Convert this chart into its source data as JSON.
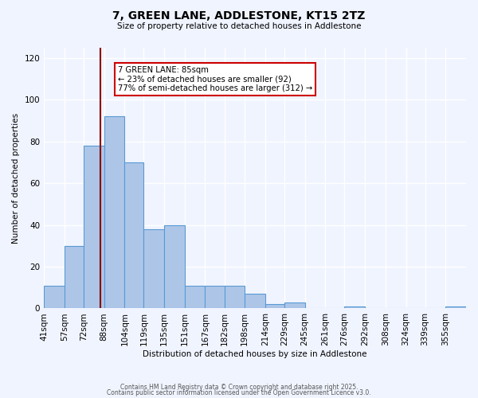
{
  "title": "7, GREEN LANE, ADDLESTONE, KT15 2TZ",
  "subtitle": "Size of property relative to detached houses in Addlestone",
  "xlabel": "Distribution of detached houses by size in Addlestone",
  "ylabel": "Number of detached properties",
  "bin_labels": [
    "41sqm",
    "57sqm",
    "72sqm",
    "88sqm",
    "104sqm",
    "119sqm",
    "135sqm",
    "151sqm",
    "167sqm",
    "182sqm",
    "198sqm",
    "214sqm",
    "229sqm",
    "245sqm",
    "261sqm",
    "276sqm",
    "292sqm",
    "308sqm",
    "324sqm",
    "339sqm",
    "355sqm"
  ],
  "bin_edges": [
    41,
    57,
    72,
    88,
    104,
    119,
    135,
    151,
    167,
    182,
    198,
    214,
    229,
    245,
    261,
    276,
    292,
    308,
    324,
    339,
    355,
    371
  ],
  "bar_heights": [
    11,
    30,
    78,
    92,
    70,
    38,
    40,
    11,
    11,
    11,
    7,
    2,
    3,
    0,
    0,
    1,
    0,
    0,
    0,
    0,
    1
  ],
  "bar_color": "#adc6e8",
  "bar_edge_color": "#5a9ad4",
  "property_size": 85,
  "vline_color": "#8b0000",
  "annotation_line1": "7 GREEN LANE: 85sqm",
  "annotation_line2": "← 23% of detached houses are smaller (92)",
  "annotation_line3": "77% of semi-detached houses are larger (312) →",
  "annotation_box_color": "#ffffff",
  "annotation_box_edge_color": "#cc0000",
  "ylim": [
    0,
    125
  ],
  "background_color": "#f0f4ff",
  "grid_color": "#ffffff",
  "footer_line1": "Contains HM Land Registry data © Crown copyright and database right 2025.",
  "footer_line2": "Contains public sector information licensed under the Open Government Licence v3.0."
}
